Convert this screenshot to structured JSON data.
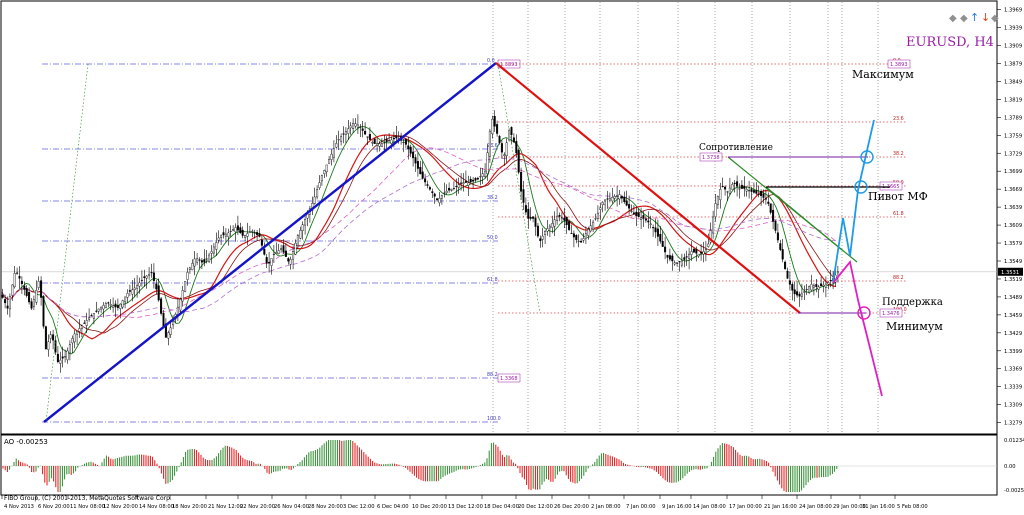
{
  "chart_data": [
    {
      "type": "candlestick",
      "title": "EURUSD, H4",
      "symbol": "EURUSD",
      "timeframe": "H4",
      "ylim": [
        1.327,
        1.3975
      ],
      "price_ticks": [
        "1.3969",
        "1.3939",
        "1.3909",
        "1.3879",
        "1.3849",
        "1.3819",
        "1.3789",
        "1.3759",
        "1.3729",
        "1.3699",
        "1.3669",
        "1.3639",
        "1.3609",
        "1.3579",
        "1.3549",
        "1.3519",
        "1.3489",
        "1.3459",
        "1.3429",
        "1.3399",
        "1.3369",
        "1.3339",
        "1.3309",
        "1.3279"
      ],
      "current_price": "1.3531",
      "time_ticks": [
        "4 Nov 2013",
        "6 Nov 20:00",
        "11 Nov 08:00",
        "12 Nov 20:00",
        "14 Nov 08:00",
        "18 Nov 20:00",
        "21 Nov 12:00",
        "22 Nov 20:00",
        "26 Nov 04:00",
        "28 Nov 20:00",
        "3 Dec 12:00",
        "6 Dec 04:00",
        "10 Dec 20:00",
        "13 Dec 12:00",
        "18 Dec 04:00",
        "20 Dec 12:00",
        "26 Dec 20:00",
        "2 Jan 08:00",
        "7 Jan 00:00",
        "9 Jan 16:00",
        "14 Jan 08:00",
        "17 Jan 00:00",
        "21 Jan 16:00",
        "24 Jan 08:00",
        "29 Jan 00:00",
        "31 Jan 16:00",
        "5 Feb 08:00"
      ],
      "close_path": [
        [
          0,
          1.35
        ],
        [
          8,
          1.347
        ],
        [
          16,
          1.3535
        ],
        [
          24,
          1.3505
        ],
        [
          32,
          1.347
        ],
        [
          40,
          1.352
        ],
        [
          46,
          1.34
        ],
        [
          52,
          1.343
        ],
        [
          58,
          1.338
        ],
        [
          66,
          1.339
        ],
        [
          74,
          1.3425
        ],
        [
          82,
          1.344
        ],
        [
          90,
          1.3455
        ],
        [
          100,
          1.347
        ],
        [
          108,
          1.348
        ],
        [
          118,
          1.347
        ],
        [
          128,
          1.3495
        ],
        [
          136,
          1.3505
        ],
        [
          144,
          1.352
        ],
        [
          152,
          1.353
        ],
        [
          158,
          1.3495
        ],
        [
          166,
          1.342
        ],
        [
          172,
          1.344
        ],
        [
          180,
          1.348
        ],
        [
          188,
          1.353
        ],
        [
          196,
          1.3555
        ],
        [
          204,
          1.3545
        ],
        [
          212,
          1.3565
        ],
        [
          220,
          1.359
        ],
        [
          228,
          1.3595
        ],
        [
          236,
          1.3605
        ],
        [
          244,
          1.359
        ],
        [
          252,
          1.36
        ],
        [
          260,
          1.359
        ],
        [
          268,
          1.354
        ],
        [
          274,
          1.356
        ],
        [
          282,
          1.357
        ],
        [
          290,
          1.3545
        ],
        [
          298,
          1.359
        ],
        [
          306,
          1.362
        ],
        [
          314,
          1.365
        ],
        [
          322,
          1.369
        ],
        [
          330,
          1.372
        ],
        [
          338,
          1.375
        ],
        [
          346,
          1.3765
        ],
        [
          354,
          1.378
        ],
        [
          360,
          1.3775
        ],
        [
          366,
          1.376
        ],
        [
          374,
          1.3745
        ],
        [
          382,
          1.3745
        ],
        [
          390,
          1.375
        ],
        [
          398,
          1.3755
        ],
        [
          406,
          1.3745
        ],
        [
          414,
          1.372
        ],
        [
          422,
          1.369
        ],
        [
          430,
          1.367
        ],
        [
          438,
          1.365
        ],
        [
          446,
          1.3665
        ],
        [
          454,
          1.367
        ],
        [
          462,
          1.368
        ],
        [
          470,
          1.368
        ],
        [
          478,
          1.3685
        ],
        [
          486,
          1.37
        ],
        [
          492,
          1.379
        ],
        [
          498,
          1.376
        ],
        [
          504,
          1.372
        ],
        [
          510,
          1.377
        ],
        [
          516,
          1.374
        ],
        [
          522,
          1.366
        ],
        [
          528,
          1.362
        ],
        [
          534,
          1.362
        ],
        [
          540,
          1.358
        ],
        [
          546,
          1.36
        ],
        [
          552,
          1.361
        ],
        [
          558,
          1.3625
        ],
        [
          564,
          1.362
        ],
        [
          570,
          1.36
        ],
        [
          576,
          1.3585
        ],
        [
          582,
          1.358
        ],
        [
          588,
          1.36
        ],
        [
          596,
          1.362
        ],
        [
          604,
          1.365
        ],
        [
          612,
          1.3655
        ],
        [
          620,
          1.366
        ],
        [
          628,
          1.364
        ],
        [
          636,
          1.3625
        ],
        [
          644,
          1.362
        ],
        [
          652,
          1.361
        ],
        [
          660,
          1.3585
        ],
        [
          668,
          1.3555
        ],
        [
          676,
          1.3545
        ],
        [
          684,
          1.355
        ],
        [
          692,
          1.3565
        ],
        [
          700,
          1.356
        ],
        [
          708,
          1.357
        ],
        [
          716,
          1.3645
        ],
        [
          722,
          1.3675
        ],
        [
          728,
          1.3665
        ],
        [
          734,
          1.368
        ],
        [
          740,
          1.367
        ],
        [
          746,
          1.367
        ],
        [
          752,
          1.3665
        ],
        [
          760,
          1.366
        ],
        [
          768,
          1.365
        ],
        [
          776,
          1.36
        ],
        [
          782,
          1.356
        ],
        [
          788,
          1.352
        ],
        [
          794,
          1.3495
        ],
        [
          800,
          1.349
        ],
        [
          806,
          1.35
        ],
        [
          812,
          1.351
        ],
        [
          818,
          1.3505
        ],
        [
          826,
          1.351
        ],
        [
          834,
          1.352
        ],
        [
          838,
          1.3531
        ]
      ],
      "indicators": [
        "MA fast (dark green)",
        "MA slow (red)",
        "MA (dark red)",
        "MA (pink dashed)",
        "MA (violet dashed)"
      ],
      "fibo_retracement": {
        "levels": [
          "0.0",
          "23.6",
          "38.2",
          "50.0",
          "61.8",
          "88.2",
          "100.0"
        ],
        "price_boxes": [
          "1.3893",
          "1.3368"
        ],
        "extension_levels": [
          "0.0",
          "23.6",
          "38.2",
          "50.0",
          "61.8",
          "88.2",
          "100.0"
        ],
        "extension_price_boxes": [
          "1.3893",
          "1.3738",
          "1.3665",
          "1.3476"
        ]
      },
      "annotations": {
        "max": "Максимум",
        "resistance": "Сопротивление",
        "pivot": "Пивот МФ",
        "support": "Поддержка",
        "min": "Минимум"
      }
    },
    {
      "type": "histogram",
      "title": "AO -0.00253",
      "ylim": [
        -0.0042,
        0.0042
      ],
      "ticks": [
        "0.01234",
        "0.00",
        "-0.00253"
      ],
      "series": [
        {
          "name": "AO",
          "colors": {
            "up": "#2e8b2e",
            "down": "#e31414"
          }
        }
      ]
    }
  ],
  "footer": {
    "copyright": "FIBO Group, (C) 2001-2013, MetaQuotes Software Corp."
  },
  "toolbar": {
    "icons": [
      "diamond-icon",
      "diamond-icon",
      "up-arrow-icon",
      "down-arrow-icon",
      "diamond-icon"
    ]
  },
  "colors": {
    "trend_up": "#1414c8",
    "trend_down": "#e01010",
    "channel": "#2a8c2a",
    "forecast_up": "#1e9be6",
    "forecast_down": "#e020c0",
    "fib": "#6060e0",
    "fib_red": "#e04040",
    "label_purple": "#9a1aa8"
  }
}
